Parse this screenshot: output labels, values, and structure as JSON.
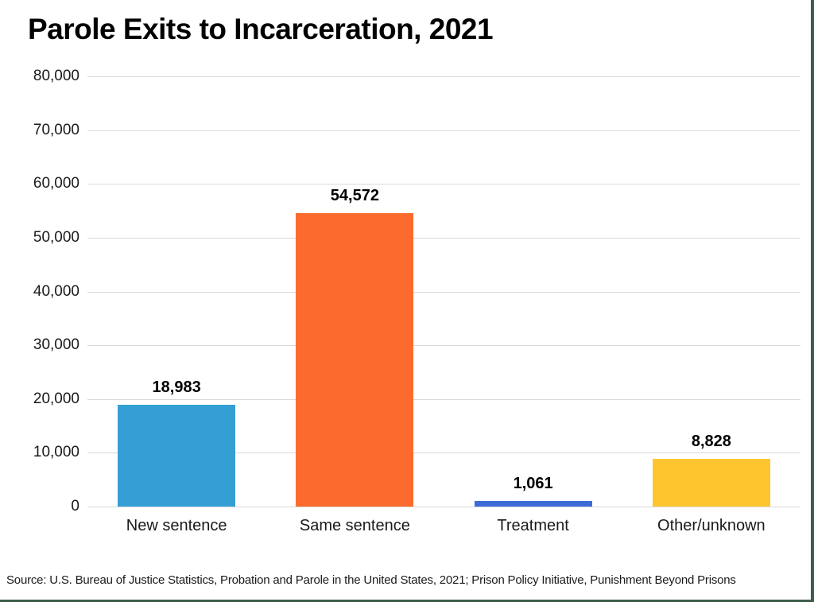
{
  "page": {
    "title": "Parole Exits to Incarceration, 2021",
    "source": "Source: U.S. Bureau of Justice Statistics, Probation and Parole in the United States, 2021; Prison Policy Initiative, Punishment Beyond Prisons",
    "border_color": "#3E5C4B",
    "gridline_color": "#d9d9d9"
  },
  "chart_data": {
    "type": "bar",
    "title": "Parole Exits to Incarceration, 2021",
    "categories": [
      "New sentence",
      "Same sentence",
      "Treatment",
      "Other/unknown"
    ],
    "values": [
      18983,
      54572,
      1061,
      8828
    ],
    "value_labels": [
      "18,983",
      "54,572",
      "1,061",
      "8,828"
    ],
    "bar_colors": [
      "#339FD4",
      "#FC6B2D",
      "#3C6BD5",
      "#FFC52E"
    ],
    "xlabel": "",
    "ylabel": "",
    "ylim": [
      0,
      80000
    ],
    "yticks": [
      0,
      10000,
      20000,
      30000,
      40000,
      50000,
      60000,
      70000,
      80000
    ],
    "ytick_labels": [
      "0",
      "10,000",
      "20,000",
      "30,000",
      "40,000",
      "50,000",
      "60,000",
      "70,000",
      "80,000"
    ],
    "grid": "horizontal",
    "legend": "none"
  }
}
